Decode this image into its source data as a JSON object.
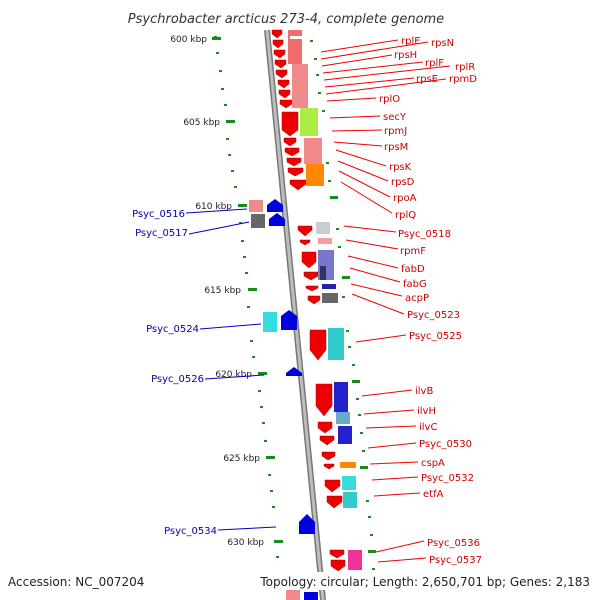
{
  "title": "Psychrobacter arcticus 273-4, complete genome",
  "footer": {
    "accession": "Accession: NC_007204",
    "summary": "Topology: circular; Length: 2,650,701 bp; Genes: 2,183"
  },
  "colors": {
    "forward": "#ee0000",
    "reverse": "#0000dd",
    "backbone": "#9a9a9a",
    "dots": "#1a8a1a"
  },
  "kbp_marks": [
    "600 kbp",
    "605 kbp",
    "610 kbp",
    "615 kbp",
    "620 kbp",
    "625 kbp",
    "630 kbp"
  ],
  "right_labels": [
    {
      "text": "rplE",
      "color": "#cc0000"
    },
    {
      "text": "rpsN",
      "color": "#cc0000"
    },
    {
      "text": "rpsH",
      "color": "#cc0000"
    },
    {
      "text": "rplF",
      "color": "#cc0000"
    },
    {
      "text": "rplR",
      "color": "#cc0000"
    },
    {
      "text": "rpsE",
      "color": "#cc0000"
    },
    {
      "text": "rpmD",
      "color": "#cc0000"
    },
    {
      "text": "rplO",
      "color": "#cc0000"
    },
    {
      "text": "secY",
      "color": "#cc0000"
    },
    {
      "text": "rpmJ",
      "color": "#cc0000"
    },
    {
      "text": "rpsM",
      "color": "#cc0000"
    },
    {
      "text": "rpsK",
      "color": "#cc0000"
    },
    {
      "text": "rpsD",
      "color": "#cc0000"
    },
    {
      "text": "rpoA",
      "color": "#cc0000"
    },
    {
      "text": "rplQ",
      "color": "#cc0000"
    },
    {
      "text": "Psyc_0518",
      "color": "#cc0000"
    },
    {
      "text": "rpmF",
      "color": "#cc0000"
    },
    {
      "text": "fabD",
      "color": "#cc0000"
    },
    {
      "text": "fabG",
      "color": "#cc0000"
    },
    {
      "text": "acpP",
      "color": "#cc0000"
    },
    {
      "text": "Psyc_0523",
      "color": "#cc0000"
    },
    {
      "text": "Psyc_0525",
      "color": "#cc0000"
    },
    {
      "text": "ilvB",
      "color": "#cc0000"
    },
    {
      "text": "ilvH",
      "color": "#cc0000"
    },
    {
      "text": "ilvC",
      "color": "#cc0000"
    },
    {
      "text": "Psyc_0530",
      "color": "#cc0000"
    },
    {
      "text": "cspA",
      "color": "#cc0000"
    },
    {
      "text": "Psyc_0532",
      "color": "#cc0000"
    },
    {
      "text": "etfA",
      "color": "#cc0000"
    },
    {
      "text": "Psyc_0536",
      "color": "#cc0000"
    },
    {
      "text": "Psyc_0537",
      "color": "#cc0000"
    }
  ],
  "left_labels": [
    {
      "text": "Psyc_0516",
      "color": "#0000aa"
    },
    {
      "text": "Psyc_0517",
      "color": "#0000aa"
    },
    {
      "text": "Psyc_0524",
      "color": "#0000aa"
    },
    {
      "text": "Psyc_0526",
      "color": "#0000aa"
    },
    {
      "text": "Psyc_0534",
      "color": "#0000aa"
    }
  ]
}
